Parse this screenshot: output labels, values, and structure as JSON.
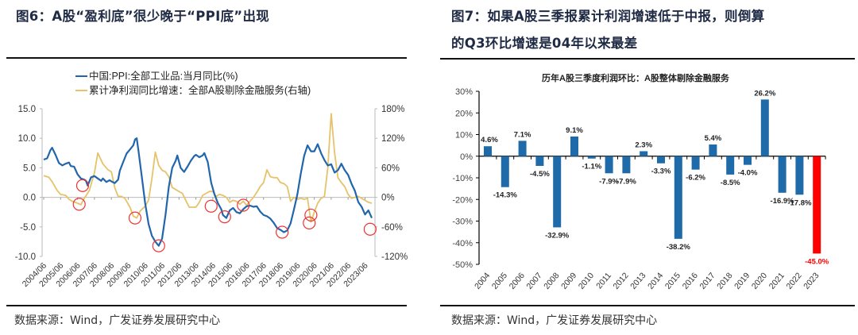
{
  "left": {
    "title": "图6：A股“盈利底”很少晚于“PPI底”出现",
    "source": "数据来源：Wind，广发证券发展研究中心"
  },
  "right": {
    "title_line1": "图7：如果A股三季报累计利润增速低于中报，则倒算",
    "title_line2": "的Q3环比增速是04年以来最差",
    "source": "数据来源：Wind，广发证券发展研究中心"
  },
  "colors": {
    "ppi": "#2166ac",
    "profit": "#e6c36a",
    "bar": "#1f6aa8",
    "highlight": "#ff0000",
    "circle": "#ee3333"
  },
  "chart_data": [
    {
      "type": "line",
      "title": "",
      "legend": [
        "中国:PPI:全部工业品:当月同比(%)",
        "累计净利润同比增速：全部A股剔除金融服务(右轴)"
      ],
      "legend_position": "top",
      "x_ticks": [
        "2004/06",
        "2005/06",
        "2006/06",
        "2007/06",
        "2008/06",
        "2009/06",
        "2010/06",
        "2011/06",
        "2012/06",
        "2013/06",
        "2014/06",
        "2015/06",
        "2016/06",
        "2017/06",
        "2018/06",
        "2019/06",
        "2020/06",
        "2021/06",
        "2022/06",
        "2023/06"
      ],
      "y_left": {
        "ticks": [
          "15.0",
          "10.0",
          "5.0",
          "0.0",
          "-5.0",
          "-10.0"
        ],
        "range": [
          -10,
          15
        ]
      },
      "y_right": {
        "ticks": [
          "180%",
          "120%",
          "60%",
          "0%",
          "-60%",
          "-120%"
        ],
        "range": [
          -120,
          180
        ]
      },
      "x_range": [
        2004.5,
        2023.9
      ],
      "series": [
        {
          "name": "中国:PPI:全部工业品:当月同比(%)",
          "axis": "left",
          "points": [
            [
              2004.5,
              6.4
            ],
            [
              2004.7,
              6.6
            ],
            [
              2004.9,
              8.0
            ],
            [
              2005.0,
              8.4
            ],
            [
              2005.2,
              7.2
            ],
            [
              2005.4,
              5.8
            ],
            [
              2005.6,
              5.4
            ],
            [
              2005.8,
              5.7
            ],
            [
              2006.0,
              5.9
            ],
            [
              2006.1,
              5.3
            ],
            [
              2006.3,
              5.2
            ],
            [
              2006.5,
              3.9
            ],
            [
              2006.7,
              3.2
            ],
            [
              2006.9,
              3.0
            ],
            [
              2007.0,
              2.8
            ],
            [
              2007.1,
              2.0
            ],
            [
              2007.3,
              3.4
            ],
            [
              2007.5,
              3.6
            ],
            [
              2007.7,
              3.2
            ],
            [
              2007.9,
              2.8
            ],
            [
              2008.0,
              3.2
            ],
            [
              2008.2,
              2.6
            ],
            [
              2008.4,
              2.9
            ],
            [
              2008.5,
              2.7
            ],
            [
              2008.7,
              2.4
            ],
            [
              2008.9,
              3.0
            ],
            [
              2009.0,
              4.5
            ],
            [
              2009.2,
              6.0
            ],
            [
              2009.4,
              7.4
            ],
            [
              2009.6,
              8.1
            ],
            [
              2009.8,
              8.8
            ],
            [
              2009.9,
              9.8
            ],
            [
              2010.0,
              10.0
            ],
            [
              2010.1,
              8.0
            ],
            [
              2010.3,
              3.5
            ],
            [
              2010.5,
              -1.0
            ],
            [
              2010.7,
              -4.5
            ],
            [
              2010.9,
              -6.5
            ],
            [
              2011.1,
              -7.5
            ],
            [
              2011.3,
              -8.2
            ],
            [
              2011.5,
              -7.0
            ],
            [
              2011.7,
              -3.0
            ],
            [
              2011.9,
              1.8
            ],
            [
              2012.1,
              5.0
            ],
            [
              2012.3,
              6.2
            ],
            [
              2012.4,
              7.1
            ],
            [
              2012.6,
              5.0
            ],
            [
              2012.8,
              4.3
            ],
            [
              2013.0,
              5.2
            ],
            [
              2013.2,
              6.2
            ],
            [
              2013.4,
              7.0
            ],
            [
              2013.5,
              7.2
            ],
            [
              2013.7,
              6.8
            ],
            [
              2013.9,
              7.1
            ],
            [
              2014.0,
              7.5
            ],
            [
              2014.2,
              6.0
            ],
            [
              2014.4,
              2.5
            ],
            [
              2014.6,
              0.5
            ],
            [
              2014.8,
              -1.0
            ],
            [
              2015.0,
              -2.0
            ],
            [
              2015.1,
              -3.0
            ],
            [
              2015.3,
              -3.5
            ],
            [
              2015.5,
              -2.2
            ],
            [
              2015.7,
              -1.8
            ],
            [
              2015.9,
              -2.5
            ],
            [
              2016.1,
              -2.7
            ],
            [
              2016.3,
              -2.0
            ],
            [
              2016.5,
              -1.5
            ],
            [
              2016.7,
              -1.4
            ],
            [
              2016.9,
              -1.6
            ],
            [
              2017.1,
              -1.5
            ],
            [
              2017.3,
              -2.4
            ],
            [
              2017.5,
              -3.0
            ],
            [
              2017.7,
              -3.2
            ],
            [
              2017.9,
              -3.6
            ],
            [
              2018.1,
              -4.3
            ],
            [
              2018.3,
              -5.2
            ],
            [
              2018.5,
              -5.5
            ],
            [
              2018.7,
              -5.9
            ],
            [
              2018.9,
              -5.6
            ],
            [
              2019.1,
              -4.4
            ],
            [
              2019.3,
              -2.0
            ],
            [
              2019.5,
              0.5
            ],
            [
              2019.7,
              4.0
            ],
            [
              2019.9,
              7.0
            ],
            [
              2020.1,
              8.8
            ],
            [
              2020.3,
              7.8
            ],
            [
              2020.5,
              7.8
            ],
            [
              2020.7,
              9.0
            ],
            [
              2020.9,
              7.5
            ],
            [
              2021.1,
              6.3
            ],
            [
              2021.3,
              5.4
            ],
            [
              2021.5,
              5.6
            ],
            [
              2021.7,
              4.2
            ],
            [
              2021.9,
              4.6
            ],
            [
              2022.1,
              5.7
            ],
            [
              2022.3,
              4.6
            ],
            [
              2022.5,
              3.8
            ],
            [
              2022.7,
              2.3
            ],
            [
              2022.9,
              1.1
            ],
            [
              2023.1,
              -0.8
            ],
            [
              2023.3,
              -1.6
            ],
            [
              2023.5,
              -2.9
            ],
            [
              2023.7,
              -2.2
            ],
            [
              2023.9,
              -3.5
            ]
          ],
          "note": "approximate trace; PPI overlays are on left axis and blend into right-axis region visually"
        },
        {
          "name": "累计净利润同比增速：全部A股剔除金融服务(右轴)",
          "axis": "right",
          "points": [
            [
              2004.5,
              44
            ],
            [
              2004.8,
              41
            ],
            [
              2005.0,
              32
            ],
            [
              2005.3,
              14
            ],
            [
              2005.5,
              6
            ],
            [
              2005.8,
              4
            ],
            [
              2006.0,
              -4
            ],
            [
              2006.2,
              -8
            ],
            [
              2006.5,
              -12
            ],
            [
              2006.7,
              -15
            ],
            [
              2006.9,
              -2
            ],
            [
              2007.2,
              14
            ],
            [
              2007.5,
              50
            ],
            [
              2007.7,
              90
            ],
            [
              2008.0,
              68
            ],
            [
              2008.3,
              56
            ],
            [
              2008.5,
              52
            ],
            [
              2008.7,
              20
            ],
            [
              2008.9,
              2
            ],
            [
              2009.1,
              2
            ],
            [
              2009.3,
              -2
            ],
            [
              2009.6,
              -20
            ],
            [
              2009.8,
              -38
            ],
            [
              2010.0,
              -42
            ],
            [
              2010.2,
              -28
            ],
            [
              2010.5,
              -18
            ],
            [
              2010.7,
              -6
            ],
            [
              2010.9,
              38
            ],
            [
              2011.1,
              92
            ],
            [
              2011.3,
              65
            ],
            [
              2011.5,
              55
            ],
            [
              2011.7,
              52
            ],
            [
              2011.9,
              42
            ],
            [
              2012.1,
              20
            ],
            [
              2012.3,
              16
            ],
            [
              2012.5,
              12
            ],
            [
              2012.7,
              8
            ],
            [
              2012.9,
              -6
            ],
            [
              2013.1,
              -20
            ],
            [
              2013.3,
              -20
            ],
            [
              2013.5,
              -20
            ],
            [
              2013.7,
              -10
            ],
            [
              2013.9,
              4
            ],
            [
              2014.1,
              8
            ],
            [
              2014.3,
              12
            ],
            [
              2014.5,
              12
            ],
            [
              2014.7,
              2
            ],
            [
              2014.9,
              6
            ],
            [
              2015.1,
              4
            ],
            [
              2015.3,
              0
            ],
            [
              2015.5,
              -10
            ],
            [
              2015.7,
              -6
            ],
            [
              2015.9,
              -8
            ],
            [
              2016.1,
              -14
            ],
            [
              2016.3,
              -8
            ],
            [
              2016.5,
              -16
            ],
            [
              2016.7,
              -8
            ],
            [
              2016.9,
              0
            ],
            [
              2017.1,
              10
            ],
            [
              2017.3,
              22
            ],
            [
              2017.5,
              30
            ],
            [
              2017.7,
              56
            ],
            [
              2017.9,
              42
            ],
            [
              2018.1,
              40
            ],
            [
              2018.3,
              40
            ],
            [
              2018.5,
              30
            ],
            [
              2018.7,
              28
            ],
            [
              2018.9,
              22
            ],
            [
              2019.1,
              -8
            ],
            [
              2019.3,
              0
            ],
            [
              2019.5,
              -4
            ],
            [
              2019.7,
              -2
            ],
            [
              2019.9,
              -4
            ],
            [
              2020.1,
              -2
            ],
            [
              2020.3,
              -50
            ],
            [
              2020.5,
              -30
            ],
            [
              2020.7,
              -12
            ],
            [
              2020.9,
              -2
            ],
            [
              2021.1,
              2
            ],
            [
              2021.3,
              60
            ],
            [
              2021.5,
              170
            ],
            [
              2021.7,
              90
            ],
            [
              2021.9,
              40
            ],
            [
              2022.1,
              30
            ],
            [
              2022.3,
              22
            ],
            [
              2022.5,
              6
            ],
            [
              2022.7,
              -2
            ],
            [
              2022.9,
              0
            ],
            [
              2023.1,
              2
            ],
            [
              2023.3,
              -2
            ],
            [
              2023.5,
              -6
            ],
            [
              2023.7,
              -10
            ],
            [
              2023.9,
              -12
            ]
          ]
        }
      ],
      "annotations": [
        {
          "type": "circle",
          "series": "ppi",
          "x": 2006.8,
          "y": 2.0
        },
        {
          "type": "circle",
          "series": "profit",
          "x": 2006.6,
          "y": -14
        },
        {
          "type": "circle",
          "series": "profit",
          "x": 2009.9,
          "y": -42
        },
        {
          "type": "circle",
          "series": "ppi",
          "x": 2011.3,
          "y": -8.2
        },
        {
          "type": "circle",
          "series": "profit",
          "x": 2014.4,
          "y": -18
        },
        {
          "type": "circle",
          "series": "ppi",
          "x": 2015.2,
          "y": -3.3
        },
        {
          "type": "circle",
          "series": "profit",
          "x": 2016.3,
          "y": -16
        },
        {
          "type": "circle",
          "series": "ppi",
          "x": 2018.6,
          "y": -5.9
        },
        {
          "type": "circle",
          "series": "profit",
          "x": 2020.2,
          "y": -52
        },
        {
          "type": "circle",
          "series": "ppi",
          "x": 2020.3,
          "y": -3.0
        },
        {
          "type": "circle",
          "series": "ppi",
          "x": 2023.8,
          "y": -5.4
        }
      ]
    },
    {
      "type": "bar",
      "title": "历年A股三季度利润环比：A股整体剔除金融服务",
      "categories": [
        "2004",
        "2005",
        "2006",
        "2007",
        "2008",
        "2009",
        "2010",
        "2011",
        "2012",
        "2013",
        "2014",
        "2015",
        "2016",
        "2017",
        "2018",
        "2019",
        "2020",
        "2021",
        "2022",
        "2023"
      ],
      "values": [
        4.6,
        -14.3,
        7.1,
        -4.5,
        -32.9,
        9.1,
        -1.1,
        -7.9,
        -7.9,
        2.3,
        -3.3,
        -38.2,
        -6.2,
        5.4,
        -8.5,
        -4.0,
        26.2,
        -16.9,
        -17.8,
        -45.0
      ],
      "labels": [
        "4.6%",
        "-14.3%",
        "7.1%",
        "-4.5%",
        "-32.9%",
        "9.1%",
        "-1.1%",
        "-7.9%",
        "-7.9%",
        "2.3%",
        "-3.3%",
        "-38.2%",
        "-6.2%",
        "5.4%",
        "-8.5%",
        "-4.0%",
        "26.2%",
        "-16.9%",
        "-17.8%",
        "-45.0%"
      ],
      "highlight_index": 19,
      "y_ticks": [
        "30%",
        "20%",
        "10%",
        "0%",
        "-10%",
        "-20%",
        "-30%",
        "-40%",
        "-50%"
      ],
      "ylim": [
        -50,
        30
      ],
      "xlabel": "",
      "ylabel": "",
      "grid": false
    }
  ]
}
